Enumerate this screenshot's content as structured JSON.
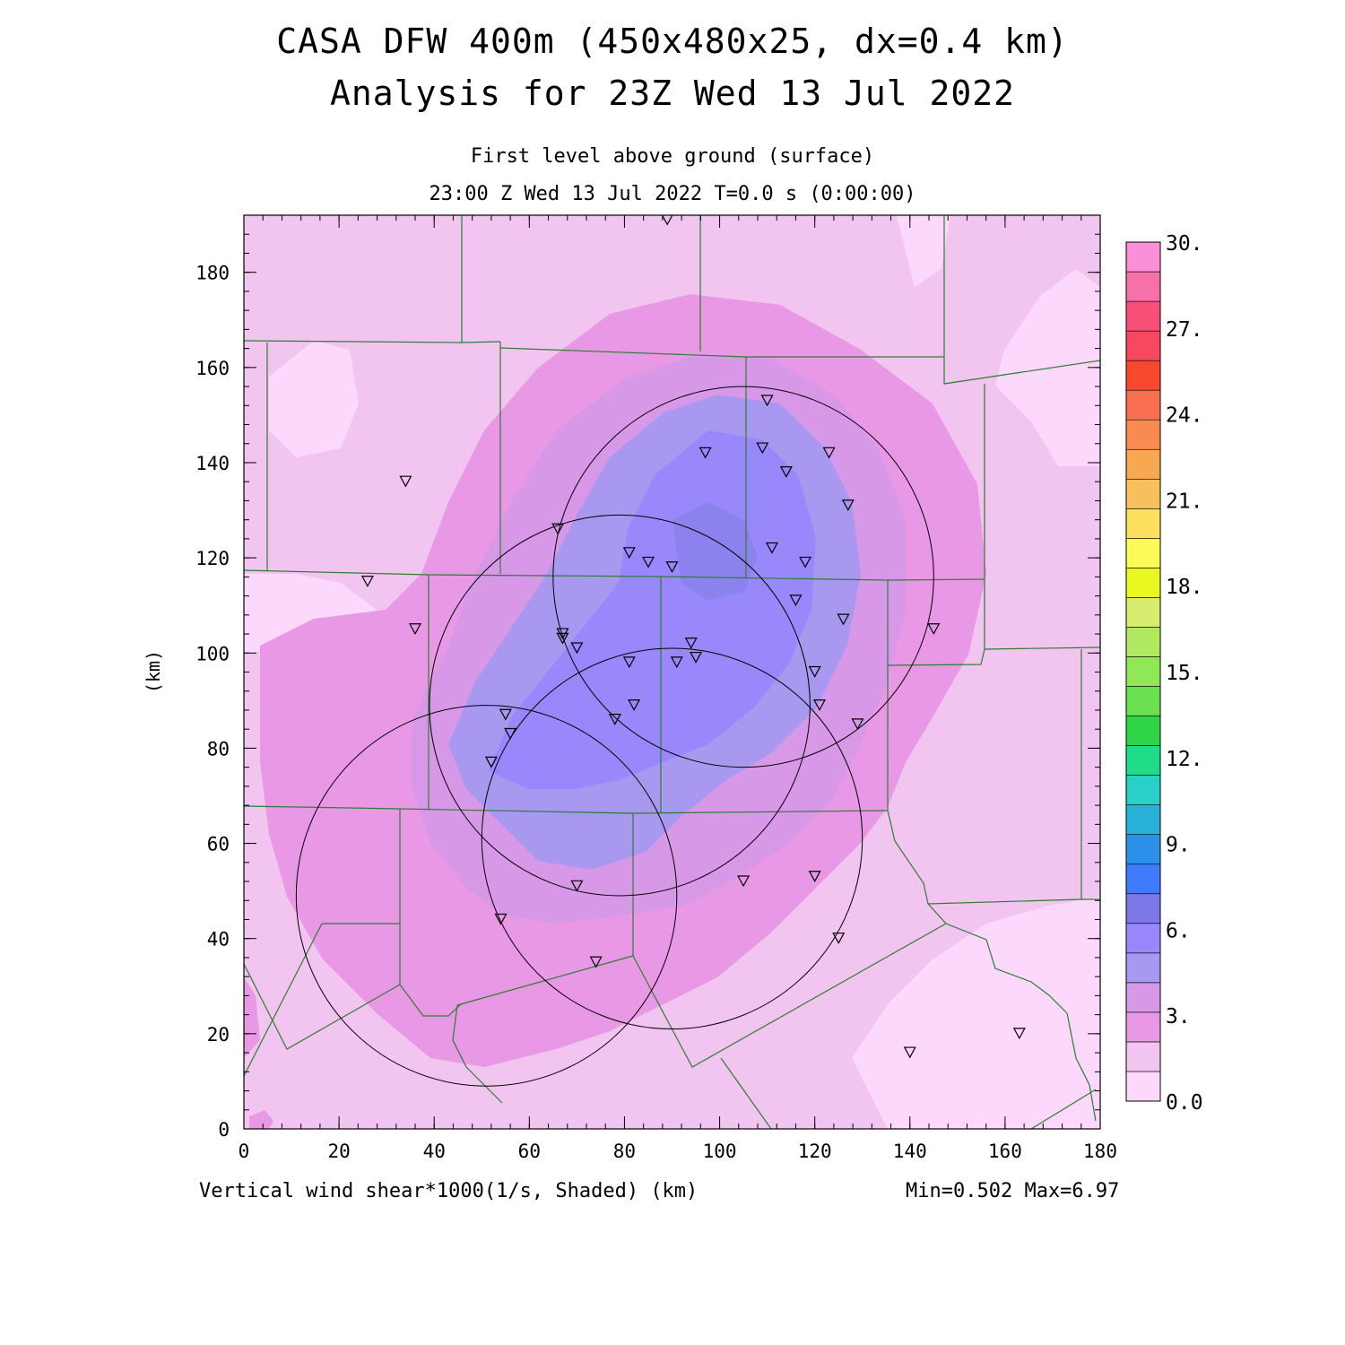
{
  "title_line1": "CASA DFW 400m (450x480x25, dx=0.4 km)",
  "title_line2": "Analysis for 23Z Wed 13 Jul 2022",
  "subtitle_line1": "First level above ground (surface)",
  "subtitle_line2": "23:00 Z Wed 13 Jul 2022    T=0.0 s (0:00:00)",
  "footer_left": "Vertical wind shear*1000(1/s, Shaded)  (km)",
  "footer_right": "Min=0.502 Max=6.97",
  "chart_data": {
    "type": "heatmap",
    "xlabel": "",
    "ylabel": "(km)",
    "xlim": [
      0,
      180
    ],
    "ylim": [
      0,
      192
    ],
    "xticks": [
      "0",
      "20",
      "40",
      "60",
      "80",
      "100",
      "120",
      "140",
      "160",
      "180"
    ],
    "yticks": [
      "0",
      "20",
      "40",
      "60",
      "80",
      "100",
      "120",
      "140",
      "160",
      "180"
    ],
    "colorbar": {
      "labels": [
        "0.0",
        "3.",
        "6.",
        "9.",
        "12.",
        "15.",
        "18.",
        "21.",
        "24.",
        "27.",
        "30."
      ],
      "colors": [
        "#fcd8fc",
        "#f2c4f0",
        "#e898e4",
        "#d898e8",
        "#a898f0",
        "#9888fc",
        "#7c78e8",
        "#3e7cfc",
        "#2a90e8",
        "#28b0d8",
        "#28d0c8",
        "#20dc88",
        "#30d448",
        "#68e050",
        "#90e858",
        "#b0e860",
        "#d8ec70",
        "#e8f820",
        "#fcfc58",
        "#fce060",
        "#f8c05c",
        "#f8a850",
        "#f88c50",
        "#f87050",
        "#f84830",
        "#f84860",
        "#f85078",
        "#f870a8",
        "#fc90d8"
      ]
    },
    "radar_centers_km": [
      [
        79,
        89
      ],
      [
        105,
        116
      ],
      [
        90,
        61
      ],
      [
        51,
        49
      ]
    ],
    "radar_radius_km": 40,
    "stations_km": [
      [
        89,
        191
      ],
      [
        110,
        153
      ],
      [
        109,
        143
      ],
      [
        97,
        142
      ],
      [
        123,
        142
      ],
      [
        114,
        138
      ],
      [
        34,
        136
      ],
      [
        127,
        131
      ],
      [
        66,
        126
      ],
      [
        81,
        121
      ],
      [
        111,
        122
      ],
      [
        85,
        119
      ],
      [
        90,
        118
      ],
      [
        118,
        119
      ],
      [
        26,
        115
      ],
      [
        116,
        111
      ],
      [
        126,
        107
      ],
      [
        36,
        105
      ],
      [
        145,
        105
      ],
      [
        67,
        104
      ],
      [
        67,
        103
      ],
      [
        70,
        101
      ],
      [
        94,
        102
      ],
      [
        95,
        99
      ],
      [
        81,
        98
      ],
      [
        91,
        98
      ],
      [
        120,
        96
      ],
      [
        82,
        89
      ],
      [
        121,
        89
      ],
      [
        55,
        87
      ],
      [
        78,
        86
      ],
      [
        129,
        85
      ],
      [
        56,
        83
      ],
      [
        52,
        77
      ],
      [
        105,
        52
      ],
      [
        120,
        53
      ],
      [
        70,
        51
      ],
      [
        54,
        44
      ],
      [
        125,
        40
      ],
      [
        74,
        35
      ],
      [
        163,
        20
      ],
      [
        140,
        16
      ]
    ],
    "min": "0.502",
    "max": "6.97"
  }
}
